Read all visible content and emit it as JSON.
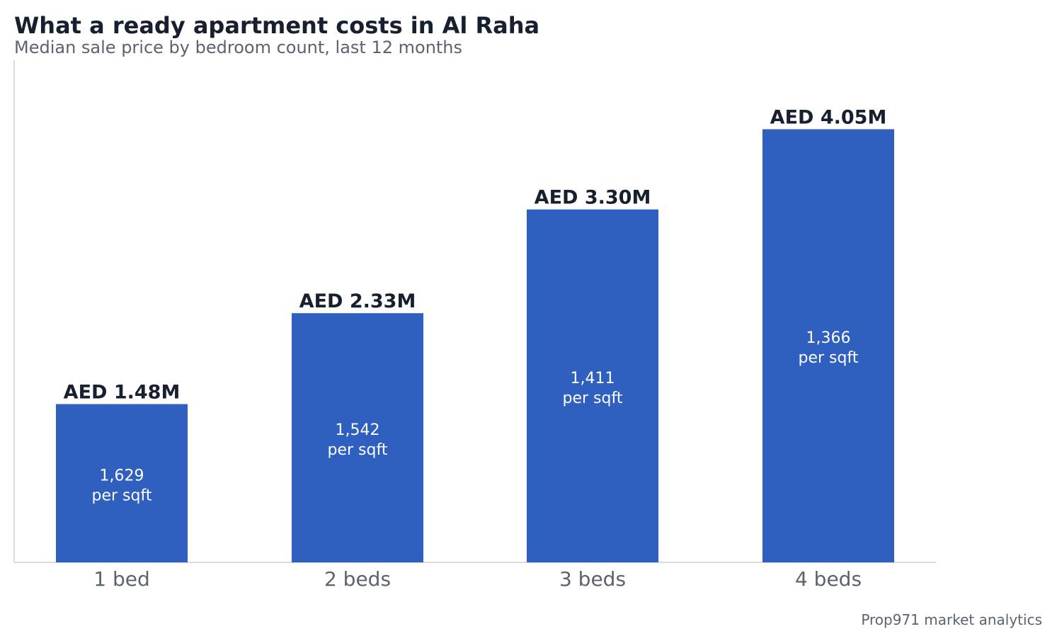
{
  "chart_data": {
    "type": "bar",
    "title": "What a ready apartment costs in Al Raha",
    "subtitle": "Median sale price by bedroom count, last 12 months",
    "categories": [
      "1 bed",
      "2 beds",
      "3 beds",
      "4 beds"
    ],
    "values": [
      1.48,
      2.33,
      3.3,
      4.05
    ],
    "value_unit": "AED millions",
    "value_labels": [
      "AED 1.48M",
      "AED 2.33M",
      "AED 3.30M",
      "AED 4.05M"
    ],
    "price_per_sqft": [
      "1,629",
      "1,542",
      "1,411",
      "1,366"
    ],
    "price_per_sqft_suffix": "per sqft",
    "ylim": [
      0,
      4.7
    ],
    "grid": false,
    "legend": "none",
    "source": "Prop971 market analytics"
  },
  "colors": {
    "bar": "#2f5fbf",
    "title": "#17202f",
    "value_label": "#17202f",
    "subtitle": "#5b6270",
    "tick_label": "#5b6270",
    "inner_label": "#ffffff",
    "axis": "#d7dbe0",
    "source": "#5b6270"
  }
}
